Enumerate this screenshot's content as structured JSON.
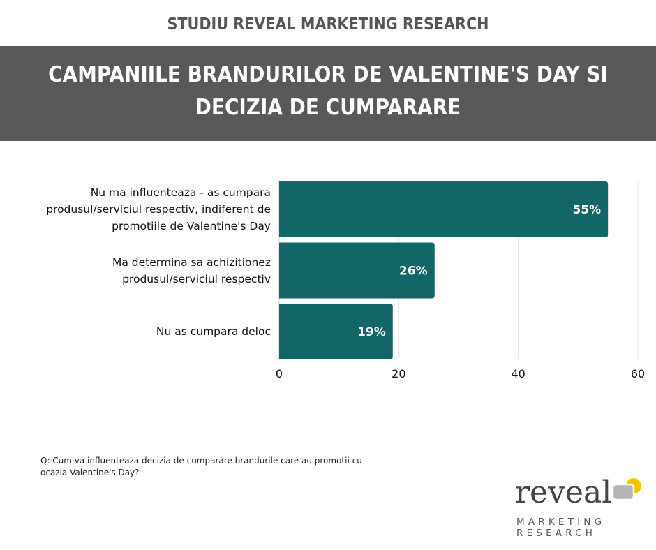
{
  "header": {
    "study_title": "STUDIU REVEAL MARKETING RESEARCH",
    "title_line1": "CAMPANIILE BRANDURILOR DE VALENTINE'S DAY SI",
    "title_line2": "DECIZIA DE CUMPARARE"
  },
  "chart_data": {
    "type": "bar",
    "orientation": "horizontal",
    "categories": [
      [
        "Nu ma influenteaza - as cumpara",
        "produsul/serviciul respectiv, indiferent de",
        "promotiile de Valentine's Day"
      ],
      [
        "Ma determina sa achizitionez",
        "produsul/serviciul respectiv"
      ],
      [
        "Nu as cumpara deloc"
      ]
    ],
    "values": [
      55,
      26,
      19
    ],
    "data_labels": [
      "55%",
      "26%",
      "19%"
    ],
    "xlim": [
      0,
      60
    ],
    "xticks": [
      0,
      20,
      40,
      60
    ],
    "grid": true,
    "bar_color": "#126667"
  },
  "footer": {
    "question_line1": "Q: Cum va influenteaza decizia de cumparare brandurile care au promotii cu",
    "question_line2": "ocazia Valentine's Day?"
  },
  "logo": {
    "word": "reveal",
    "line1": "MARKETING",
    "line2": "RESEARCH",
    "accent_color": "#f5c400",
    "box_color": "#b5b5b5"
  }
}
